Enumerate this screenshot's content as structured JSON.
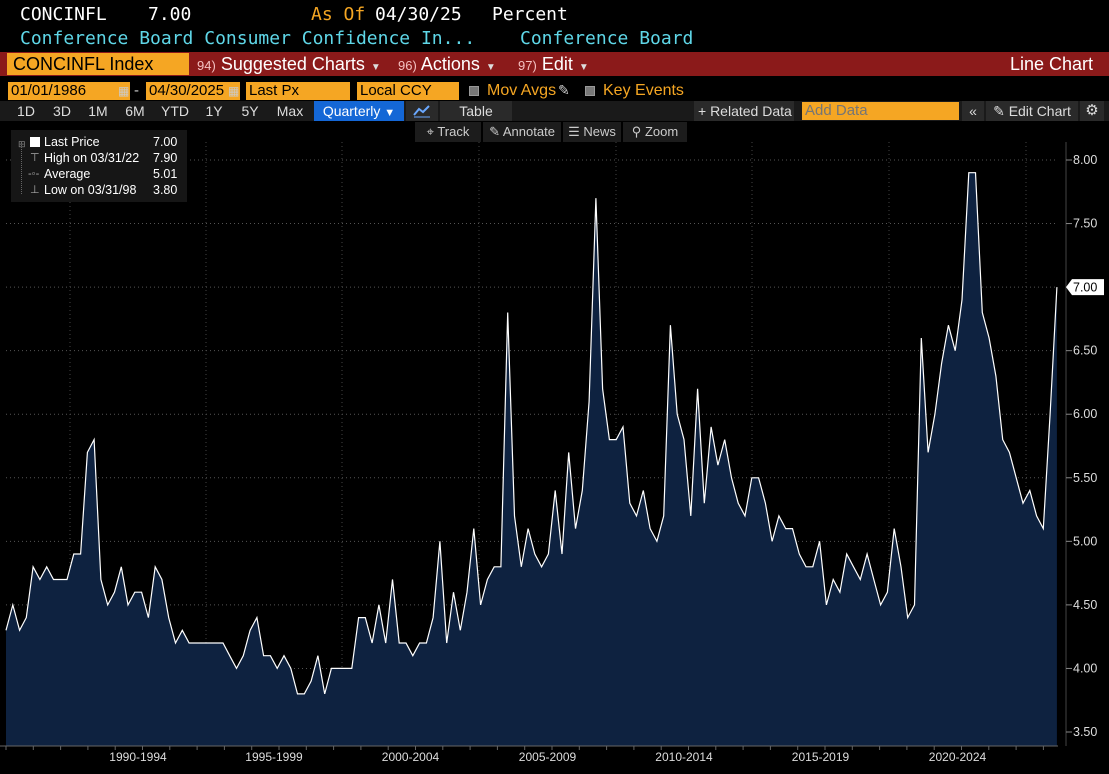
{
  "header": {
    "ticker": "CONCINFL",
    "value": "7.00",
    "as_of_label": "As Of",
    "as_of_date": "04/30/25",
    "unit": "Percent",
    "description": "Conference Board Consumer Confidence In...",
    "source": "Conference Board"
  },
  "menubar": {
    "security": "CONCINFL Index",
    "items": [
      {
        "num": "94)",
        "label": "Suggested Charts"
      },
      {
        "num": "96)",
        "label": "Actions"
      },
      {
        "num": "97)",
        "label": "Edit"
      }
    ],
    "chart_type": "Line Chart"
  },
  "options": {
    "start_date": "01/01/1986",
    "date_separator": "-",
    "end_date": "04/30/2025",
    "field": "Last Px",
    "currency": "Local CCY",
    "mov_avgs": "Mov Avgs",
    "key_events": "Key Events"
  },
  "toolbar": {
    "ranges": [
      "1D",
      "3D",
      "1M",
      "6M",
      "YTD",
      "1Y",
      "5Y",
      "Max"
    ],
    "frequency": "Quarterly",
    "table": "Table",
    "related": "+ Related Data",
    "add_data_placeholder": "Add Data",
    "edit_chart": "Edit Chart"
  },
  "subtools": [
    "Track",
    "Annotate",
    "News",
    "Zoom"
  ],
  "legend": [
    {
      "label": "Last Price",
      "value": "7.00"
    },
    {
      "label": "High on 03/31/22",
      "value": "7.90"
    },
    {
      "label": "Average",
      "value": "5.01"
    },
    {
      "label": "Low on 03/31/98",
      "value": "3.80"
    }
  ],
  "colors": {
    "background": "#000000",
    "area_fill": "#0e2240",
    "line": "#ffffff",
    "accent_orange": "#f5a623",
    "menu_red": "#8b1a1a",
    "cyan_text": "#5fd7e8",
    "active_blue": "#1467d6"
  },
  "chart_data": {
    "type": "area",
    "frequency": "quarterly",
    "x_start": "1986-Q1",
    "x_end": "2025-Q2",
    "x_tick_labels": [
      "1990-1994",
      "1995-1999",
      "2000-2004",
      "2005-2009",
      "2010-2014",
      "2015-2019",
      "2020-2024"
    ],
    "y_ticks": [
      "3.50",
      "4.00",
      "4.50",
      "5.00",
      "5.50",
      "6.00",
      "6.50",
      "7.00",
      "7.50",
      "8.00"
    ],
    "ylim": [
      3.4,
      8.25
    ],
    "last_value_label": "7.00",
    "values": [
      4.3,
      4.5,
      4.3,
      4.4,
      4.8,
      4.7,
      4.8,
      4.7,
      4.7,
      4.7,
      4.9,
      4.9,
      5.7,
      5.8,
      4.7,
      4.5,
      4.6,
      4.8,
      4.5,
      4.6,
      4.6,
      4.4,
      4.8,
      4.7,
      4.4,
      4.2,
      4.3,
      4.2,
      4.2,
      4.2,
      4.2,
      4.2,
      4.2,
      4.1,
      4.0,
      4.1,
      4.3,
      4.4,
      4.1,
      4.1,
      4.0,
      4.1,
      4.0,
      3.8,
      3.8,
      3.9,
      4.1,
      3.8,
      4.0,
      4.0,
      4.0,
      4.0,
      4.4,
      4.4,
      4.2,
      4.5,
      4.2,
      4.7,
      4.2,
      4.2,
      4.1,
      4.2,
      4.2,
      4.4,
      5.0,
      4.2,
      4.6,
      4.3,
      4.6,
      5.1,
      4.5,
      4.7,
      4.8,
      4.8,
      6.8,
      5.2,
      4.8,
      5.1,
      4.9,
      4.8,
      4.9,
      5.4,
      4.9,
      5.7,
      5.1,
      5.4,
      6.1,
      7.7,
      6.2,
      5.8,
      5.8,
      5.9,
      5.3,
      5.2,
      5.4,
      5.1,
      5.0,
      5.2,
      6.7,
      6.0,
      5.8,
      5.2,
      6.2,
      5.3,
      5.9,
      5.6,
      5.8,
      5.5,
      5.3,
      5.2,
      5.5,
      5.5,
      5.3,
      5.0,
      5.2,
      5.1,
      5.1,
      4.9,
      4.8,
      4.8,
      5.0,
      4.5,
      4.7,
      4.6,
      4.9,
      4.8,
      4.7,
      4.9,
      4.7,
      4.5,
      4.6,
      5.1,
      4.8,
      4.4,
      4.5,
      6.6,
      5.7,
      6.0,
      6.4,
      6.7,
      6.5,
      6.9,
      7.9,
      7.9,
      6.8,
      6.6,
      6.3,
      5.8,
      5.7,
      5.5,
      5.3,
      5.4,
      5.2,
      5.1,
      6.0,
      7.0
    ]
  }
}
